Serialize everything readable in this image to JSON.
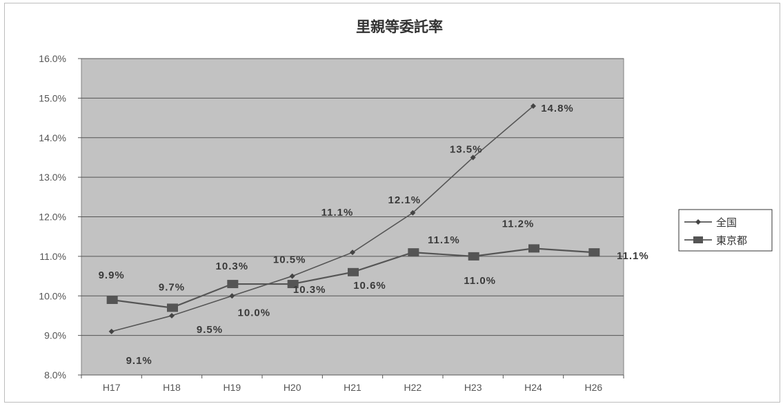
{
  "chart_data": {
    "type": "line",
    "title": "里親等委託率",
    "categories": [
      "H17",
      "H18",
      "H19",
      "H20",
      "H21",
      "H22",
      "H23",
      "H24",
      "H26"
    ],
    "y_tick_labels": [
      "8.0%",
      "9.0%",
      "10.0%",
      "11.0%",
      "12.0%",
      "13.0%",
      "14.0%",
      "15.0%",
      "16.0%"
    ],
    "ylim": [
      8.0,
      16.0
    ],
    "grid": true,
    "legend_position": "right",
    "plot_background": "#c2c2c2",
    "series": [
      {
        "name": "全国",
        "marker": "diamond",
        "color": "#555555",
        "values": [
          9.1,
          9.5,
          10.0,
          10.5,
          11.1,
          12.1,
          13.5,
          14.8,
          null
        ],
        "labels": [
          "9.1%",
          "9.5%",
          "10.0%",
          "10.5%",
          "11.1%",
          "12.1%",
          "13.5%",
          "14.8%",
          null
        ]
      },
      {
        "name": "東京都",
        "marker": "square",
        "color": "#555555",
        "values": [
          9.9,
          9.7,
          10.3,
          10.3,
          10.6,
          11.1,
          11.0,
          11.2,
          11.1
        ],
        "labels": [
          "9.9%",
          "9.7%",
          "10.3%",
          "10.3%",
          "10.6%",
          "11.1%",
          "11.0%",
          "11.2%",
          "11.1%"
        ]
      }
    ]
  }
}
